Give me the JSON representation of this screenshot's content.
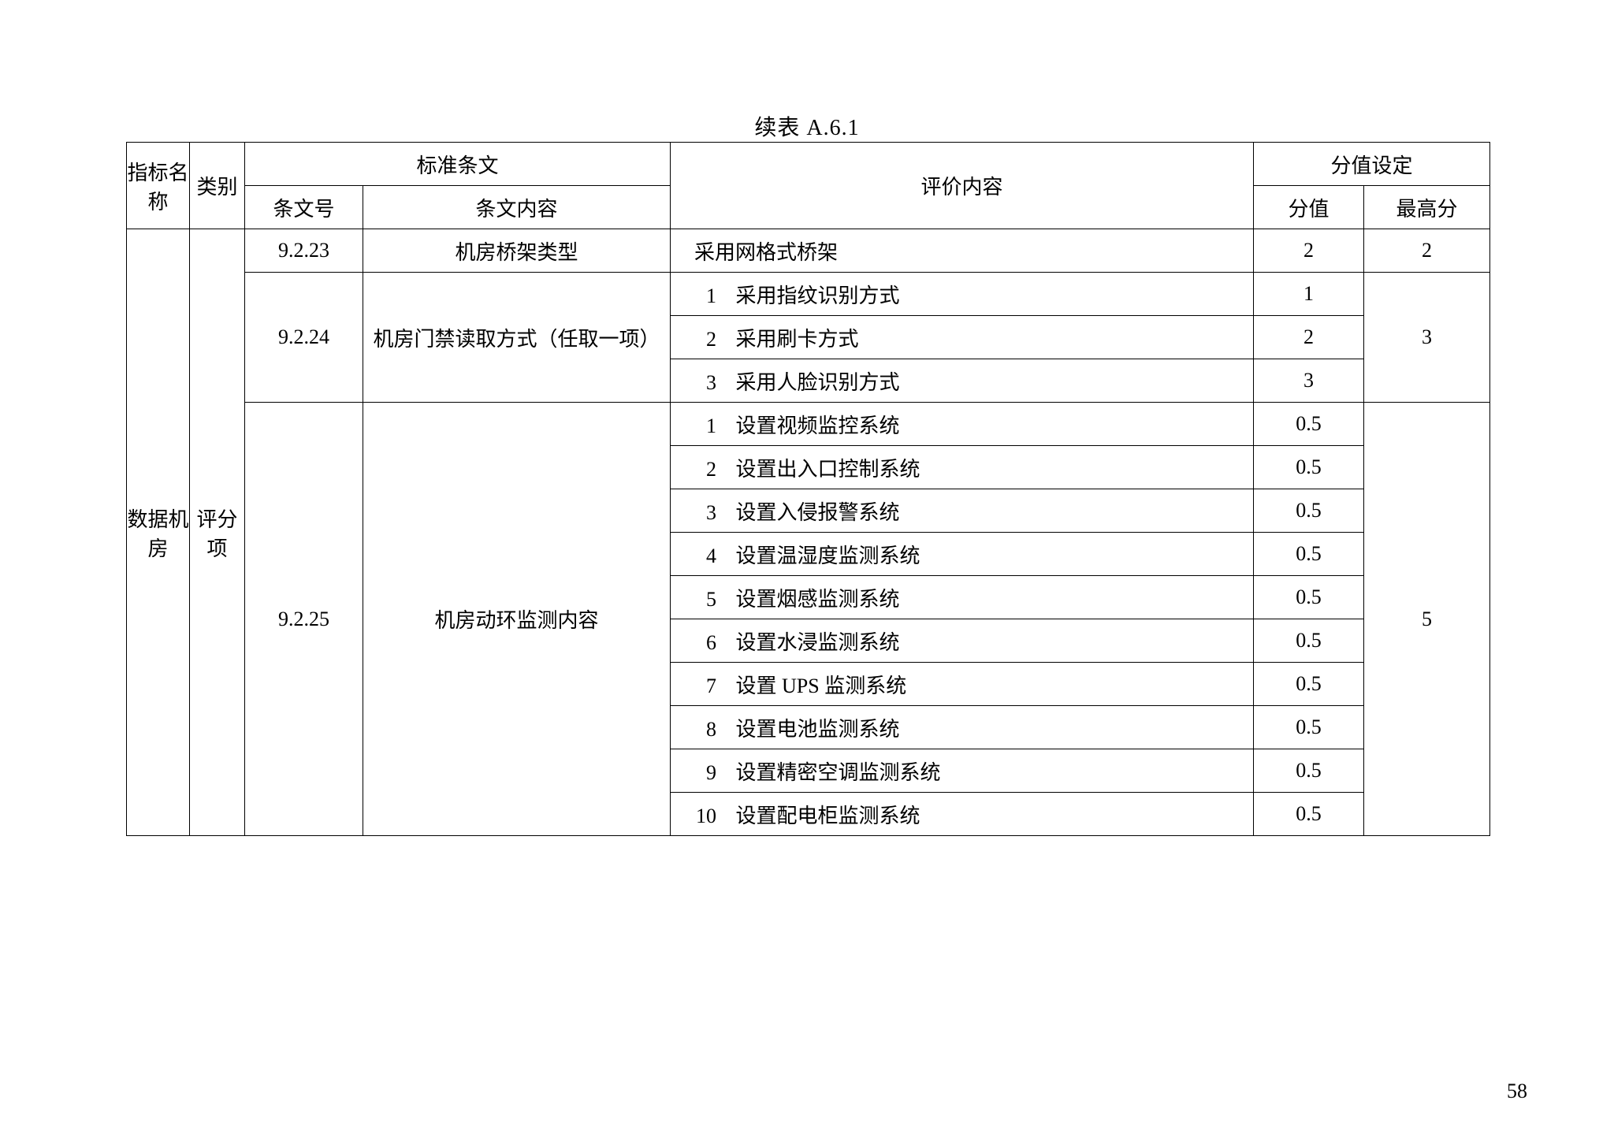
{
  "caption": "续表 A.6.1",
  "page_number": "58",
  "headers": {
    "indicator_name": "指标名称",
    "category": "类别",
    "standard_clauses": "标准条文",
    "clause_no": "条文号",
    "clause_content": "条文内容",
    "eval_content": "评价内容",
    "score_setting": "分值设定",
    "score": "分值",
    "max_score": "最高分"
  },
  "left": {
    "indicator_name": "数据机房",
    "category": "评分项"
  },
  "sections": [
    {
      "clause_no": "9.2.23",
      "clause_content": "机房桥架类型",
      "max_score": "2",
      "items": [
        {
          "prefix": "",
          "text": "采用网格式桥架",
          "score": "2"
        }
      ]
    },
    {
      "clause_no": "9.2.24",
      "clause_content": "机房门禁读取方式（任取一项）",
      "max_score": "3",
      "items": [
        {
          "prefix": "1",
          "text": "采用指纹识别方式",
          "score": "1"
        },
        {
          "prefix": "2",
          "text": "采用刷卡方式",
          "score": "2"
        },
        {
          "prefix": "3",
          "text": "采用人脸识别方式",
          "score": "3"
        }
      ]
    },
    {
      "clause_no": "9.2.25",
      "clause_content": "机房动环监测内容",
      "max_score": "5",
      "items": [
        {
          "prefix": "1",
          "text": "设置视频监控系统",
          "score": "0.5"
        },
        {
          "prefix": "2",
          "text": "设置出入口控制系统",
          "score": "0.5"
        },
        {
          "prefix": "3",
          "text": "设置入侵报警系统",
          "score": "0.5"
        },
        {
          "prefix": "4",
          "text": "设置温湿度监测系统",
          "score": "0.5"
        },
        {
          "prefix": "5",
          "text": "设置烟感监测系统",
          "score": "0.5"
        },
        {
          "prefix": "6",
          "text": "设置水浸监测系统",
          "score": "0.5"
        },
        {
          "prefix": "7",
          "text": "设置 UPS 监测系统",
          "score": "0.5"
        },
        {
          "prefix": "8",
          "text": "设置电池监测系统",
          "score": "0.5"
        },
        {
          "prefix": "9",
          "text": "设置精密空调监测系统",
          "score": "0.5"
        },
        {
          "prefix": "10",
          "text": "设置配电柜监测系统",
          "score": "0.5"
        }
      ]
    }
  ]
}
